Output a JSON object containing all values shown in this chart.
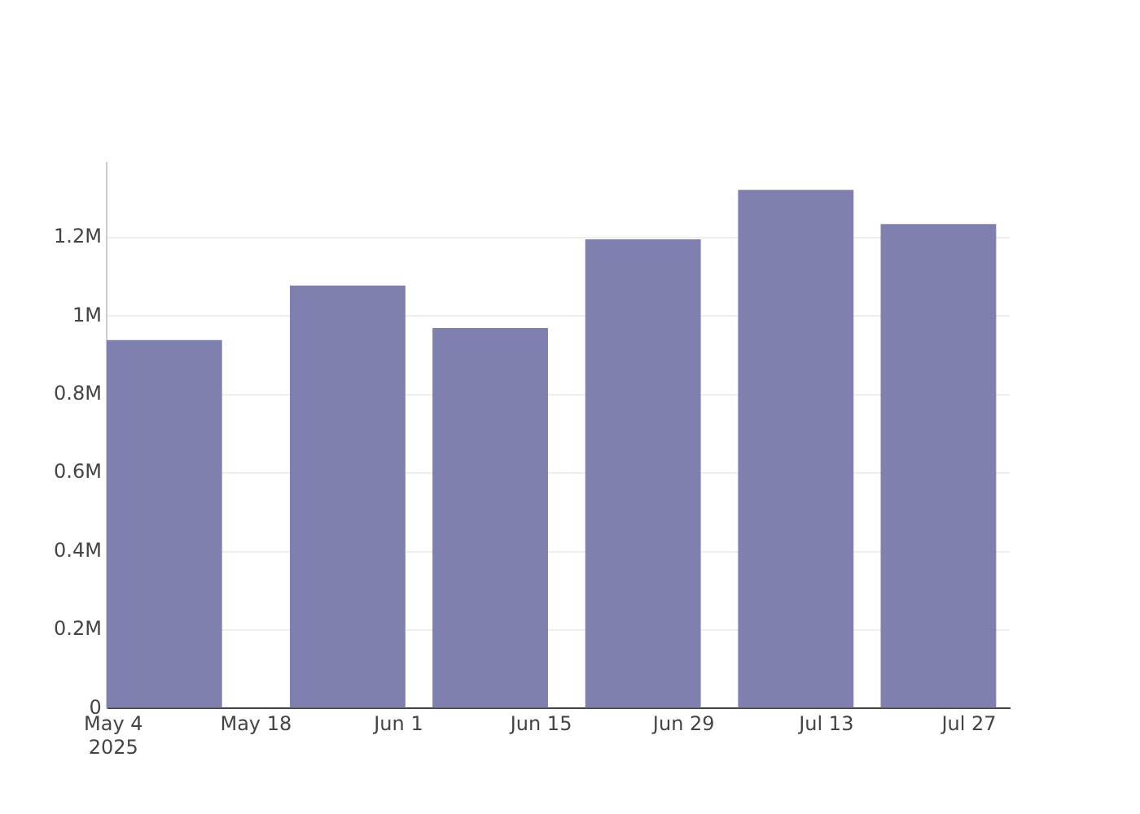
{
  "chart_data": {
    "type": "bar",
    "x": [
      "2025-05-09",
      "2025-05-27",
      "2025-06-10",
      "2025-06-25",
      "2025-07-10",
      "2025-07-24"
    ],
    "values": [
      939000,
      1078000,
      970000,
      1196000,
      1322000,
      1235000
    ],
    "color": "#7f7fb0",
    "xlim": [
      "2025-05-03T08:00",
      "2025-07-31"
    ],
    "xticks": [
      {
        "value": "2025-05-04",
        "label": "May 4\n2025"
      },
      {
        "value": "2025-05-18",
        "label": "May 18"
      },
      {
        "value": "2025-06-01",
        "label": "Jun 1"
      },
      {
        "value": "2025-06-15",
        "label": "Jun 15"
      },
      {
        "value": "2025-06-29",
        "label": "Jun 29"
      },
      {
        "value": "2025-07-13",
        "label": "Jul 13"
      },
      {
        "value": "2025-07-27",
        "label": "Jul 27"
      }
    ],
    "yticks": [
      {
        "value": 0,
        "label": "0"
      },
      {
        "value": 200000,
        "label": "0.2M"
      },
      {
        "value": 400000,
        "label": "0.4M"
      },
      {
        "value": 600000,
        "label": "0.6M"
      },
      {
        "value": 800000,
        "label": "0.8M"
      },
      {
        "value": 1000000,
        "label": "1M"
      },
      {
        "value": 1200000,
        "label": "1.2M"
      }
    ],
    "ylim": [
      0,
      1391000
    ],
    "grid": "y"
  }
}
